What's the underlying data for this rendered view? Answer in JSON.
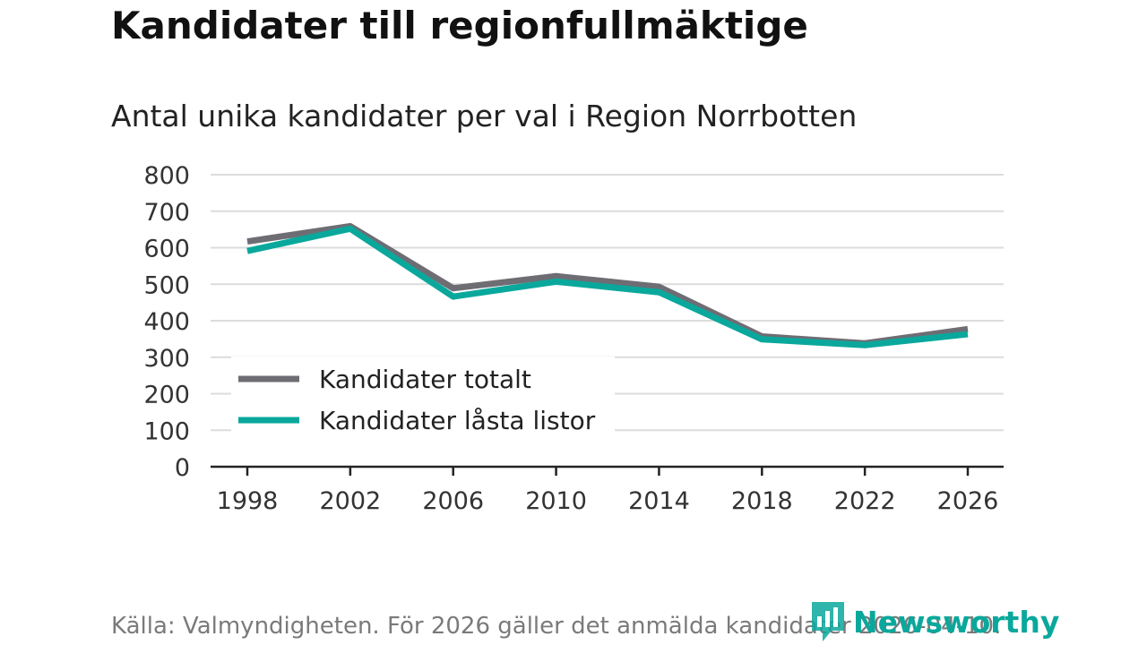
{
  "title": "Kandidater till regionfullmäktige",
  "subtitle": "Antal unika kandidater per val i Region Norrbotten",
  "source": "Källa: Valmyndigheten. För 2026 gäller det anmälda kandidater 2026-04-10.",
  "brand": {
    "name": "Newsworthy",
    "icon": "newsworthy-logo-icon",
    "color": "#0aa89c"
  },
  "chart_data": {
    "type": "line",
    "title": "Kandidater till regionfullmäktige",
    "subtitle": "Antal unika kandidater per val i Region Norrbotten",
    "xlabel": "",
    "ylabel": "",
    "x": [
      "1998",
      "2002",
      "2006",
      "2010",
      "2014",
      "2018",
      "2022",
      "2026"
    ],
    "ylim": [
      0,
      800
    ],
    "yticks": [
      "0",
      "100",
      "200",
      "300",
      "400",
      "500",
      "600",
      "700",
      "800"
    ],
    "grid": true,
    "legend_position": "bottom-left",
    "series": [
      {
        "name": "Kandidater totalt",
        "color": "#6e6d74",
        "values": [
          617,
          659,
          489,
          522,
          493,
          357,
          338,
          377
        ]
      },
      {
        "name": "Kandidater låsta listor",
        "color": "#0aa89c",
        "values": [
          591,
          652,
          466,
          507,
          478,
          349,
          333,
          363
        ]
      }
    ]
  }
}
